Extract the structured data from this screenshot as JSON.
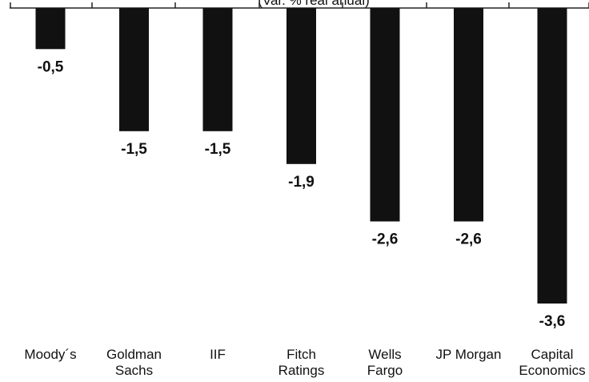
{
  "chart_data": {
    "type": "bar",
    "subtitle": "(Var. % real anual)",
    "categories": [
      [
        "Moody´s"
      ],
      [
        "Goldman",
        "Sachs"
      ],
      [
        "IIF"
      ],
      [
        "Fitch",
        "Ratings"
      ],
      [
        "Wells",
        "Fargo"
      ],
      [
        "JP Morgan"
      ],
      [
        "Capital",
        "Economics"
      ]
    ],
    "values": [
      -0.5,
      -1.5,
      -1.5,
      -1.9,
      -2.6,
      -2.6,
      -3.6
    ],
    "value_labels": [
      "-0,5",
      "-1,5",
      "-1,5",
      "-1,9",
      "-2,6",
      "-2,6",
      "-3,6"
    ],
    "ylim": [
      -3.6,
      0
    ],
    "grid": false,
    "bar_color": "#111111"
  }
}
